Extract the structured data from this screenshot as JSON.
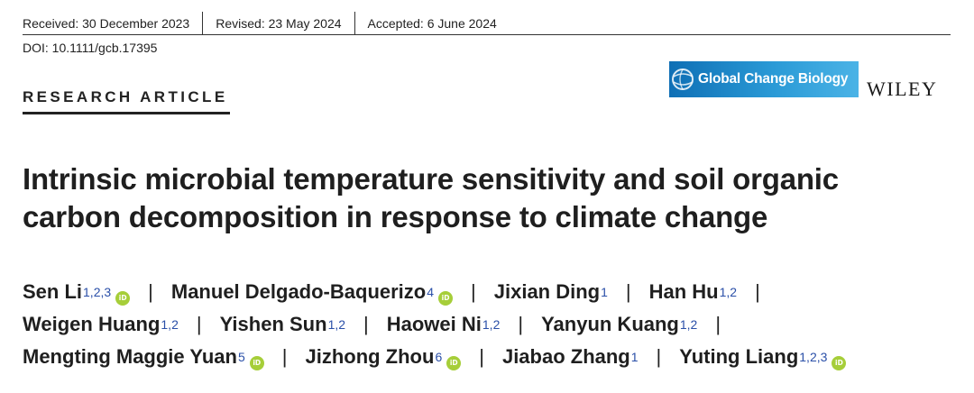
{
  "header": {
    "received": "Received: 30 December 2023",
    "revised": "Revised: 23 May 2024",
    "accepted": "Accepted: 6 June 2024",
    "doi": "DOI: 10.1111/gcb.17395"
  },
  "section_label": "RESEARCH ARTICLE",
  "journal": {
    "name": "Global Change Biology",
    "publisher": "WILEY",
    "logo_color": "#1a84c8"
  },
  "title": {
    "line1": "Intrinsic microbial temperature sensitivity and soil organic",
    "line2": "carbon decomposition in response to climate change"
  },
  "authors": [
    {
      "name": "Sen Li",
      "aff": "1,2,3",
      "orcid": true
    },
    {
      "name": "Manuel Delgado-Baquerizo",
      "aff": "4",
      "orcid": true
    },
    {
      "name": "Jixian Ding",
      "aff": "1",
      "orcid": false
    },
    {
      "name": "Han Hu",
      "aff": "1,2",
      "orcid": false
    },
    {
      "name": "Weigen Huang",
      "aff": "1,2",
      "orcid": false
    },
    {
      "name": "Yishen Sun",
      "aff": "1,2",
      "orcid": false
    },
    {
      "name": "Haowei Ni",
      "aff": "1,2",
      "orcid": false
    },
    {
      "name": "Yanyun Kuang",
      "aff": "1,2",
      "orcid": false
    },
    {
      "name": "Mengting Maggie Yuan",
      "aff": "5",
      "orcid": true
    },
    {
      "name": "Jizhong Zhou",
      "aff": "6",
      "orcid": true
    },
    {
      "name": "Jiabao Zhang",
      "aff": "1",
      "orcid": false
    },
    {
      "name": "Yuting Liang",
      "aff": "1,2,3",
      "orcid": true
    }
  ],
  "orcid_label": "iD",
  "separator": "|"
}
